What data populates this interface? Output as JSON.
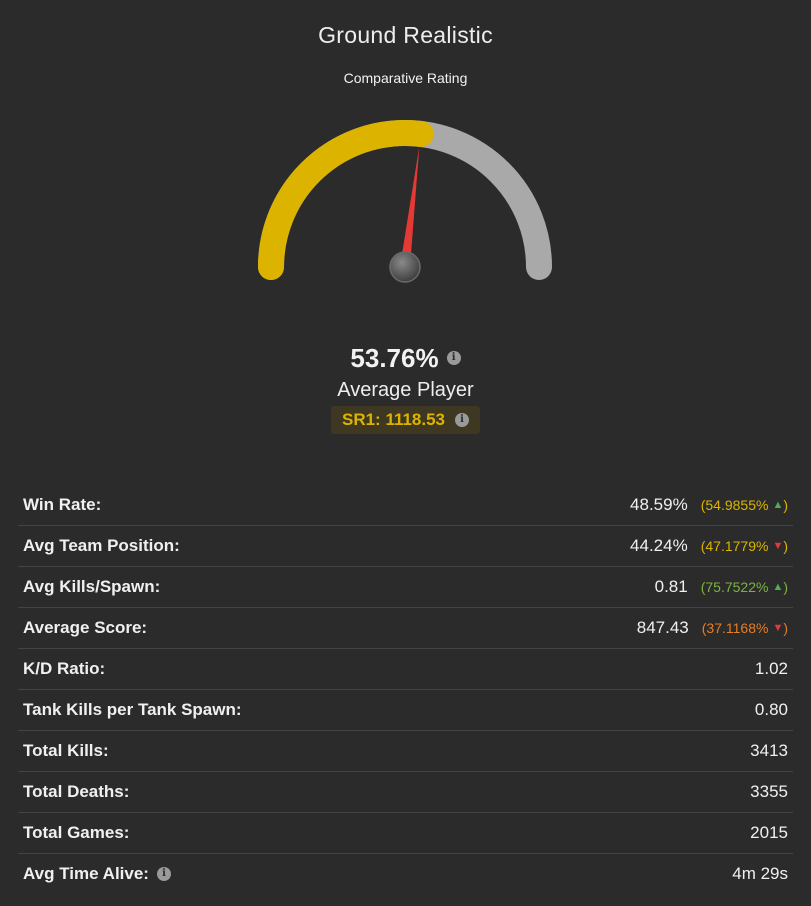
{
  "header": {
    "title": "Ground Realistic",
    "subtitle": "Comparative Rating"
  },
  "gauge": {
    "fraction": 0.5376,
    "fill_color": "#dcb400",
    "track_color": "#a9a9a9",
    "needle_color": "#e53935"
  },
  "rating": {
    "percent": "53.76%",
    "label": "Average Player",
    "sr_text": "SR1: 1118.53"
  },
  "stats": [
    {
      "label": "Win Rate:",
      "value": "48.59%",
      "compare": "(54.9855%",
      "direction": "up",
      "compare_color": "#dcb400",
      "has_info": false
    },
    {
      "label": "Avg Team Position:",
      "value": "44.24%",
      "compare": "(47.1779%",
      "direction": "down",
      "compare_color": "#dcb400",
      "has_info": false
    },
    {
      "label": "Avg Kills/Spawn:",
      "value": "0.81",
      "compare": "(75.7522%",
      "direction": "up",
      "compare_color": "#7cb342",
      "has_info": false
    },
    {
      "label": "Average Score:",
      "value": "847.43",
      "compare": "(37.1168%",
      "direction": "down",
      "compare_color": "#e67e22",
      "has_info": false
    },
    {
      "label": "K/D Ratio:",
      "value": "1.02",
      "compare": "",
      "direction": "",
      "compare_color": "",
      "has_info": false
    },
    {
      "label": "Tank Kills per Tank Spawn:",
      "value": "0.80",
      "compare": "",
      "direction": "",
      "compare_color": "",
      "has_info": false
    },
    {
      "label": "Total Kills:",
      "value": "3413",
      "compare": "",
      "direction": "",
      "compare_color": "",
      "has_info": false
    },
    {
      "label": "Total Deaths:",
      "value": "3355",
      "compare": "",
      "direction": "",
      "compare_color": "",
      "has_info": false
    },
    {
      "label": "Total Games:",
      "value": "2015",
      "compare": "",
      "direction": "",
      "compare_color": "",
      "has_info": false
    },
    {
      "label": "Avg Time Alive:",
      "value": "4m 29s",
      "compare": "",
      "direction": "",
      "compare_color": "",
      "has_info": true
    }
  ],
  "symbols": {
    "info": "i",
    "arrow_up": "▲",
    "arrow_down": "▼",
    "close_paren": ")"
  }
}
